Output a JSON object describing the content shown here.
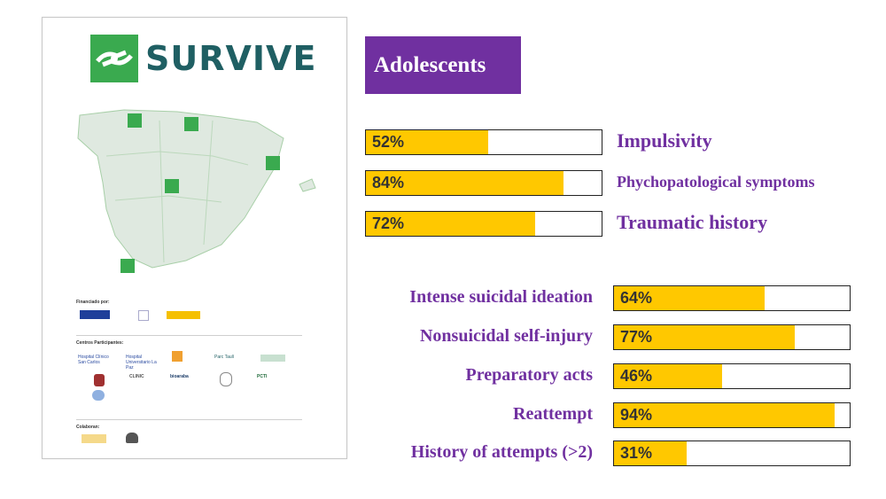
{
  "poster": {
    "logo_text": "SURVIVE",
    "funded_label": "Financiado por:",
    "centers_label": "Centros Participantes:",
    "collab_label": "Colaboran:",
    "partner_logos": [
      "Hospital Clínico San Carlos",
      "Hospital Universitario La Paz",
      "Parc Taulí",
      "CLINIC",
      "bioaraba",
      "PCTI"
    ]
  },
  "chart_data": [
    {
      "type": "bar",
      "title": "Adolescents",
      "categories": [
        "Impulsivity",
        "Phychopatological symptoms",
        "Traumatic history"
      ],
      "values": [
        52,
        84,
        72
      ],
      "value_labels": [
        "52%",
        "84%",
        "72%"
      ],
      "ylim": [
        0,
        100
      ],
      "label_position": "right"
    },
    {
      "type": "bar",
      "categories": [
        "Intense suicidal ideation",
        "Nonsuicidal self-injury",
        "Preparatory acts",
        "Reattempt",
        "History of attempts (>2)"
      ],
      "values": [
        64,
        77,
        46,
        94,
        31
      ],
      "value_labels": [
        "64%",
        "77%",
        "46%",
        "94%",
        "31%"
      ],
      "ylim": [
        0,
        100
      ],
      "label_position": "left"
    }
  ],
  "colors": {
    "accent_purple": "#7030a0",
    "bar_fill": "#ffc800",
    "logo_green": "#3aaa4f",
    "logo_text": "#1f5f63"
  }
}
